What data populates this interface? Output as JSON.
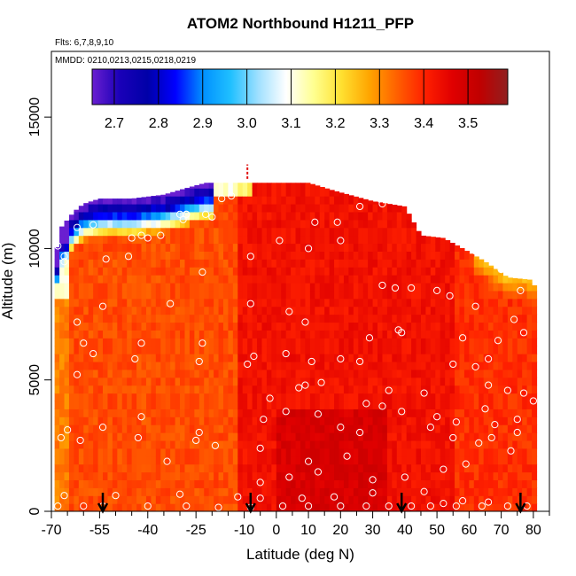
{
  "chart_data": {
    "type": "heatmap",
    "title": "ATOM2 Northbound H1211_PFP",
    "subtitle_flights": "Flts: 6,7,8,9,10",
    "subtitle_dates": "MMDD: 0210,0213,0215,0218,0219",
    "xlabel": "Latitude (deg N)",
    "ylabel": "Altitude (m)",
    "xlim": [
      -70,
      85
    ],
    "ylim": [
      0,
      17500
    ],
    "x_ticks": [
      -70,
      -55,
      -40,
      -25,
      -10,
      0,
      10,
      20,
      30,
      40,
      50,
      60,
      70,
      80
    ],
    "x_tick_labels": [
      "-70",
      "-55",
      "-40",
      "-25",
      "-10",
      "0",
      "10",
      "20",
      "30",
      "40",
      "50",
      "60",
      "70",
      "80"
    ],
    "x_minor_ticks": [
      -65,
      -60,
      -50,
      -45,
      -35,
      -30,
      -20,
      -15,
      -5,
      5,
      15,
      25,
      35,
      45,
      55,
      65,
      75,
      85
    ],
    "y_ticks": [
      0,
      5000,
      10000,
      15000
    ],
    "y_tick_labels": [
      "0",
      "5000",
      "10000",
      "15000"
    ],
    "colorbar": {
      "range": [
        2.65,
        3.59
      ],
      "ticks": [
        2.7,
        2.8,
        2.9,
        3.0,
        3.1,
        3.2,
        3.3,
        3.4,
        3.5
      ],
      "tick_labels": [
        "2.7",
        "2.8",
        "2.9",
        "3.0",
        "3.1",
        "3.2",
        "3.3",
        "3.4",
        "3.5"
      ],
      "colors": [
        "#6a1fd0",
        "#1a00b8",
        "#0000a8",
        "#0000ff",
        "#0090ff",
        "#20c0ff",
        "#a0e0ff",
        "#ffffff",
        "#ffff90",
        "#ffe030",
        "#ffa500",
        "#ff6000",
        "#ff2000",
        "#e00000",
        "#c00000",
        "#902020"
      ]
    },
    "profile_arrows_lat": [
      -54,
      -8,
      39,
      76
    ],
    "samples": [
      [
        -68,
        200
      ],
      [
        -60,
        200
      ],
      [
        -54,
        200
      ],
      [
        -40,
        200
      ],
      [
        -28,
        200
      ],
      [
        -18,
        150
      ],
      [
        -8,
        150
      ],
      [
        2,
        200
      ],
      [
        10,
        200
      ],
      [
        20,
        200
      ],
      [
        28,
        200
      ],
      [
        35,
        200
      ],
      [
        42,
        200
      ],
      [
        48,
        200
      ],
      [
        56,
        200
      ],
      [
        64,
        200
      ],
      [
        72,
        200
      ],
      [
        78,
        200
      ],
      [
        -66,
        600
      ],
      [
        -50,
        600
      ],
      [
        -30,
        650
      ],
      [
        -12,
        550
      ],
      [
        -5,
        500
      ],
      [
        8,
        500
      ],
      [
        18,
        550
      ],
      [
        30,
        700
      ],
      [
        46,
        750
      ],
      [
        52,
        300
      ],
      [
        58,
        400
      ],
      [
        66,
        350
      ],
      [
        -5,
        1100
      ],
      [
        4,
        1300
      ],
      [
        13,
        1500
      ],
      [
        30,
        1200
      ],
      [
        40,
        1300
      ],
      [
        59,
        1800
      ],
      [
        -34,
        1900
      ],
      [
        -19,
        2500
      ],
      [
        -5,
        2400
      ],
      [
        10,
        1900
      ],
      [
        22,
        2100
      ],
      [
        52,
        1600
      ],
      [
        63,
        2600
      ],
      [
        73,
        2300
      ],
      [
        -67,
        2800
      ],
      [
        -61,
        2700
      ],
      [
        -43,
        2800
      ],
      [
        -25,
        2700
      ],
      [
        55,
        2800
      ],
      [
        67,
        2800
      ],
      [
        75,
        3000
      ],
      [
        -65,
        3100
      ],
      [
        -54,
        3200
      ],
      [
        -24,
        3000
      ],
      [
        20,
        3200
      ],
      [
        26,
        3000
      ],
      [
        48,
        3200
      ],
      [
        56,
        3400
      ],
      [
        68,
        3300
      ],
      [
        -42,
        3600
      ],
      [
        -4,
        3500
      ],
      [
        3,
        3800
      ],
      [
        13,
        3700
      ],
      [
        28,
        4100
      ],
      [
        33,
        4000
      ],
      [
        39,
        3800
      ],
      [
        50,
        3600
      ],
      [
        65,
        3900
      ],
      [
        75,
        3500
      ],
      [
        -2,
        4300
      ],
      [
        7,
        4700
      ],
      [
        35,
        4600
      ],
      [
        46,
        4500
      ],
      [
        66,
        4800
      ],
      [
        72,
        4600
      ],
      [
        77,
        4500
      ],
      [
        80,
        4200
      ],
      [
        -44,
        5800
      ],
      [
        -24,
        5700
      ],
      [
        -9,
        5600
      ],
      [
        -7,
        5900
      ],
      [
        11,
        5700
      ],
      [
        20,
        5800
      ],
      [
        26,
        5700
      ],
      [
        55,
        5600
      ],
      [
        62,
        5500
      ],
      [
        66,
        5800
      ],
      [
        -42,
        6400
      ],
      [
        -23,
        6400
      ],
      [
        3,
        6000
      ],
      [
        9,
        4800
      ],
      [
        14,
        4900
      ],
      [
        38,
        6900
      ],
      [
        39,
        6800
      ],
      [
        58,
        6600
      ],
      [
        69,
        6500
      ],
      [
        77,
        6800
      ],
      [
        -54,
        7800
      ],
      [
        -33,
        7900
      ],
      [
        -8,
        7900
      ],
      [
        4,
        7600
      ],
      [
        9,
        7200
      ],
      [
        29,
        6600
      ],
      [
        33,
        8600
      ],
      [
        37,
        8500
      ],
      [
        42,
        8500
      ],
      [
        50,
        8400
      ],
      [
        54,
        8200
      ],
      [
        62,
        7800
      ],
      [
        74,
        7300
      ],
      [
        -53,
        9600
      ],
      [
        -46,
        9700
      ],
      [
        -40,
        10400
      ],
      [
        -36,
        10500
      ],
      [
        -29,
        11100
      ],
      [
        -23,
        9100
      ],
      [
        -8,
        9700
      ],
      [
        1,
        10300
      ],
      [
        10,
        10000
      ],
      [
        12,
        11000
      ],
      [
        19,
        11000
      ],
      [
        20,
        10300
      ],
      [
        26,
        11600
      ],
      [
        33,
        11700
      ],
      [
        39,
        11800
      ],
      [
        -68,
        10100
      ],
      [
        -62,
        10800
      ],
      [
        -57,
        10900
      ],
      [
        -45,
        10400
      ],
      [
        -42,
        10500
      ],
      [
        -28,
        11300
      ],
      [
        -22,
        11300
      ],
      [
        -17,
        11900
      ],
      [
        -14,
        12000
      ],
      [
        -30,
        11300
      ],
      [
        -28,
        11300
      ],
      [
        -20,
        11200
      ],
      [
        -66,
        9700
      ],
      [
        -66,
        9500
      ],
      [
        -62,
        7200
      ],
      [
        -60,
        6400
      ],
      [
        -57,
        6000
      ],
      [
        -62,
        5200
      ],
      [
        62,
        9900
      ],
      [
        59,
        10800
      ],
      [
        70,
        9200
      ],
      [
        76,
        8400
      ]
    ]
  }
}
